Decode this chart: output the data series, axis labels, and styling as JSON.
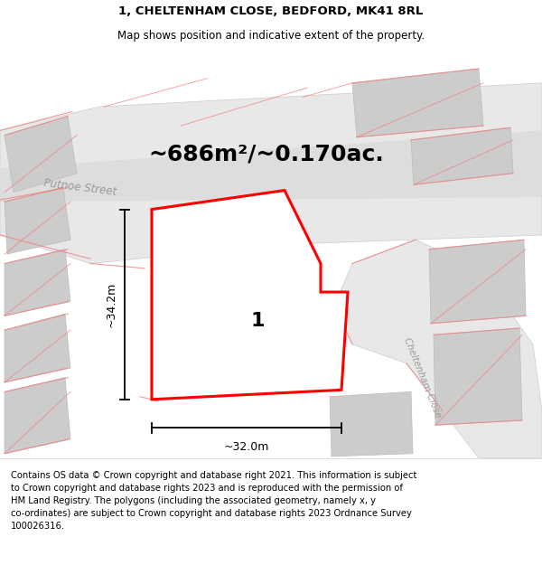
{
  "title_line1": "1, CHELTENHAM CLOSE, BEDFORD, MK41 8RL",
  "title_line2": "Map shows position and indicative extent of the property.",
  "area_text": "~686m²/~0.170ac.",
  "label_number": "1",
  "dim_vertical": "~34.2m",
  "dim_horizontal": "~32.0m",
  "street_label_nw": "Putnoe Street",
  "street_label_center": "Putnoe Street",
  "street_label_se": "Cheltenham Close",
  "footer_text": "Contains OS data © Crown copyright and database right 2021. This information is subject\nto Crown copyright and database rights 2023 and is reproduced with the permission of\nHM Land Registry. The polygons (including the associated geometry, namely x, y\nco-ordinates) are subject to Crown copyright and database rights 2023 Ordnance Survey\n100026316.",
  "bg_color": "#f2f2f2",
  "map_bg": "#f2f2f2",
  "road_fill": "#e0e0e0",
  "road_center_fill": "#d8d8d8",
  "property_stroke": "#ff0000",
  "property_fill": "#ffffff",
  "building_fill": "#cccccc",
  "building_stroke": "#bbbbbb",
  "red_line_color": "#f08080",
  "dim_color": "#000000",
  "street_color": "#999999",
  "title_fontsize": 9.5,
  "subtitle_fontsize": 8.5,
  "area_fontsize": 18,
  "footer_fontsize": 7.2,
  "label_fontsize": 16
}
